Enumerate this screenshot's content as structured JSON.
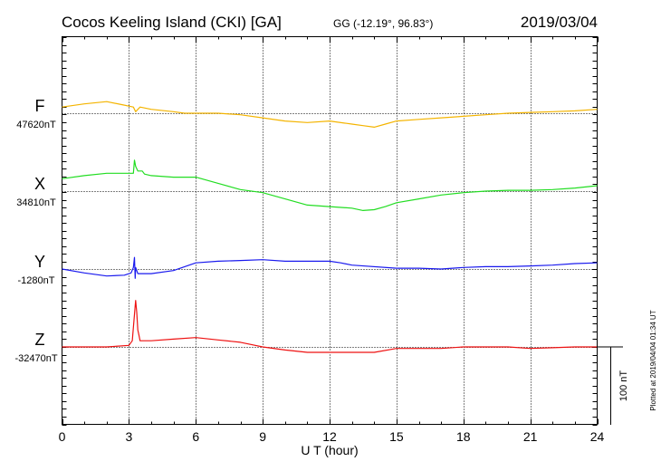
{
  "header": {
    "station": "Cocos Keeling Island (CKI)  [GA]",
    "coords": "GG (-12.19°,  96.83°)",
    "date": "2019/03/04"
  },
  "side_note": "Plotted at 2019/04/04 01:34 UT",
  "scale_label": "100 nT",
  "chart_data": {
    "type": "line",
    "xlabel": "U T (hour)",
    "xlim": [
      0,
      24
    ],
    "xticks": [
      "0",
      "3",
      "6",
      "9",
      "12",
      "15",
      "18",
      "21",
      "24"
    ],
    "grid": true,
    "scale_bar_nT": 100,
    "series": [
      {
        "name": "F",
        "baseline_label": "47620nT",
        "baseline_nT": 47620,
        "color": "#f4b400",
        "points": [
          [
            0,
            47628
          ],
          [
            1,
            47632
          ],
          [
            2,
            47635
          ],
          [
            2.7,
            47631
          ],
          [
            3.2,
            47628
          ],
          [
            3.3,
            47622
          ],
          [
            3.5,
            47628
          ],
          [
            4,
            47625
          ],
          [
            5,
            47622
          ],
          [
            5.5,
            47620
          ],
          [
            6,
            47620
          ],
          [
            7,
            47620
          ],
          [
            8,
            47618
          ],
          [
            9,
            47614
          ],
          [
            10,
            47610
          ],
          [
            11,
            47608
          ],
          [
            12,
            47610
          ],
          [
            13,
            47606
          ],
          [
            13.5,
            47604
          ],
          [
            14,
            47602
          ],
          [
            14.5,
            47606
          ],
          [
            15,
            47610
          ],
          [
            16,
            47612
          ],
          [
            17,
            47614
          ],
          [
            18,
            47616
          ],
          [
            19,
            47618
          ],
          [
            20,
            47620
          ],
          [
            21,
            47621
          ],
          [
            22,
            47622
          ],
          [
            23,
            47623
          ],
          [
            24,
            47625
          ]
        ]
      },
      {
        "name": "X",
        "baseline_label": "34810nT",
        "baseline_nT": 34810,
        "color": "#22dd22",
        "points": [
          [
            0,
            34826
          ],
          [
            1,
            34830
          ],
          [
            2,
            34833
          ],
          [
            2.7,
            34833
          ],
          [
            3.2,
            34833
          ],
          [
            3.25,
            34850
          ],
          [
            3.3,
            34842
          ],
          [
            3.4,
            34836
          ],
          [
            3.6,
            34836
          ],
          [
            3.7,
            34832
          ],
          [
            4,
            34830
          ],
          [
            5,
            34828
          ],
          [
            6,
            34828
          ],
          [
            7,
            34820
          ],
          [
            8,
            34812
          ],
          [
            9,
            34808
          ],
          [
            10,
            34800
          ],
          [
            11,
            34792
          ],
          [
            12,
            34790
          ],
          [
            13,
            34788
          ],
          [
            13.5,
            34785
          ],
          [
            14,
            34786
          ],
          [
            14.5,
            34790
          ],
          [
            15,
            34795
          ],
          [
            16,
            34800
          ],
          [
            17,
            34805
          ],
          [
            18,
            34808
          ],
          [
            19,
            34810
          ],
          [
            20,
            34811
          ],
          [
            21,
            34811
          ],
          [
            22,
            34812
          ],
          [
            23,
            34814
          ],
          [
            24,
            34817
          ]
        ]
      },
      {
        "name": "Y",
        "baseline_label": "-1280nT",
        "baseline_nT": -1280,
        "color": "#1a1aee",
        "points": [
          [
            0,
            -1280
          ],
          [
            1,
            -1285
          ],
          [
            2,
            -1289
          ],
          [
            2.8,
            -1288
          ],
          [
            3.1,
            -1285
          ],
          [
            3.2,
            -1278
          ],
          [
            3.25,
            -1265
          ],
          [
            3.28,
            -1292
          ],
          [
            3.3,
            -1278
          ],
          [
            3.4,
            -1286
          ],
          [
            3.6,
            -1286
          ],
          [
            4,
            -1286
          ],
          [
            5,
            -1282
          ],
          [
            6,
            -1272
          ],
          [
            7,
            -1270
          ],
          [
            8,
            -1269
          ],
          [
            9,
            -1268
          ],
          [
            10,
            -1270
          ],
          [
            11,
            -1270
          ],
          [
            12,
            -1270
          ],
          [
            12.5,
            -1272
          ],
          [
            13,
            -1275
          ],
          [
            15,
            -1279
          ],
          [
            16,
            -1279
          ],
          [
            17,
            -1280
          ],
          [
            18,
            -1278
          ],
          [
            19,
            -1277
          ],
          [
            20,
            -1277
          ],
          [
            21,
            -1276
          ],
          [
            22,
            -1275
          ],
          [
            23,
            -1273
          ],
          [
            24,
            -1272
          ]
        ]
      },
      {
        "name": "Z",
        "baseline_label": "-32470nT",
        "baseline_nT": -32470,
        "color": "#ee1111",
        "points": [
          [
            0,
            -32470
          ],
          [
            1,
            -32470
          ],
          [
            2,
            -32470
          ],
          [
            3,
            -32468
          ],
          [
            3.15,
            -32462
          ],
          [
            3.2,
            -32445
          ],
          [
            3.3,
            -32410
          ],
          [
            3.35,
            -32425
          ],
          [
            3.4,
            -32448
          ],
          [
            3.45,
            -32455
          ],
          [
            3.5,
            -32462
          ],
          [
            4,
            -32462
          ],
          [
            5,
            -32460
          ],
          [
            6,
            -32458
          ],
          [
            7,
            -32461
          ],
          [
            8,
            -32464
          ],
          [
            9,
            -32470
          ],
          [
            10,
            -32474
          ],
          [
            11,
            -32477
          ],
          [
            12,
            -32477
          ],
          [
            13,
            -32477
          ],
          [
            14,
            -32477
          ],
          [
            15,
            -32472
          ],
          [
            16,
            -32472
          ],
          [
            17,
            -32472
          ],
          [
            18,
            -32470
          ],
          [
            19,
            -32470
          ],
          [
            20,
            -32470
          ],
          [
            21,
            -32472
          ],
          [
            22,
            -32471
          ],
          [
            23,
            -32470
          ],
          [
            24,
            -32470
          ]
        ]
      }
    ]
  }
}
